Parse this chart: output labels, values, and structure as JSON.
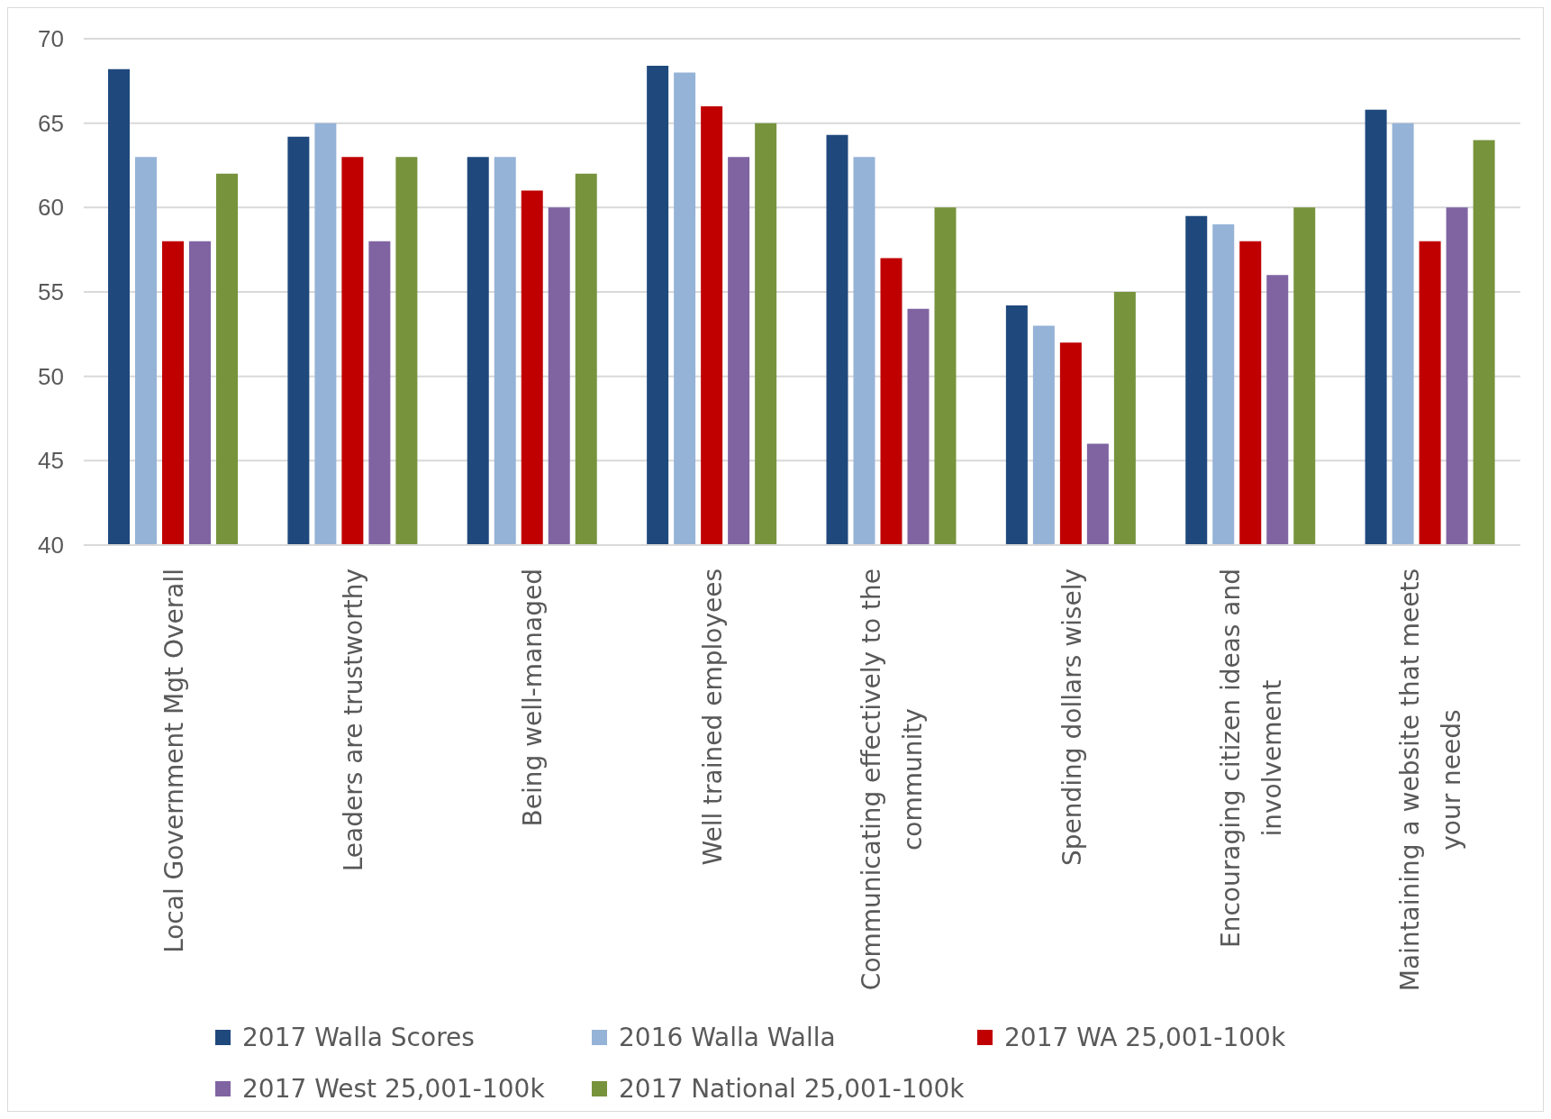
{
  "chart_data": {
    "type": "bar",
    "categories": [
      "Local Government Mgt Overall",
      "Leaders are trustworthy",
      "Being well-managed",
      "Well trained employees",
      "Communicating effectively to the community",
      "Spending dollars wisely",
      "Encouraging citizen ideas and involvement",
      "Maintaining a website that meets your needs"
    ],
    "series": [
      {
        "name": "2017 Walla Scores",
        "color": "#1f497d",
        "values": [
          68.2,
          64.2,
          63,
          68.4,
          64.3,
          54.2,
          59.5,
          65.8
        ]
      },
      {
        "name": "2016 Walla Walla",
        "color": "#95b3d7",
        "values": [
          63,
          65,
          63,
          68,
          63,
          53,
          59,
          65
        ]
      },
      {
        "name": "2017 WA 25,001-100k",
        "color": "#c00000",
        "values": [
          58,
          63,
          61,
          66,
          57,
          52,
          58,
          58
        ]
      },
      {
        "name": "2017 West 25,001-100k",
        "color": "#8064a2",
        "values": [
          58,
          58,
          60,
          63,
          54,
          46,
          56,
          60
        ]
      },
      {
        "name": "2017 National 25,001-100k",
        "color": "#77933c",
        "values": [
          62,
          63,
          62,
          65,
          60,
          55,
          60,
          64
        ]
      }
    ],
    "ylim": [
      40,
      70
    ],
    "yticks": [
      40,
      45,
      50,
      55,
      60,
      65,
      70
    ],
    "grid": "y",
    "legend": "bottom"
  }
}
